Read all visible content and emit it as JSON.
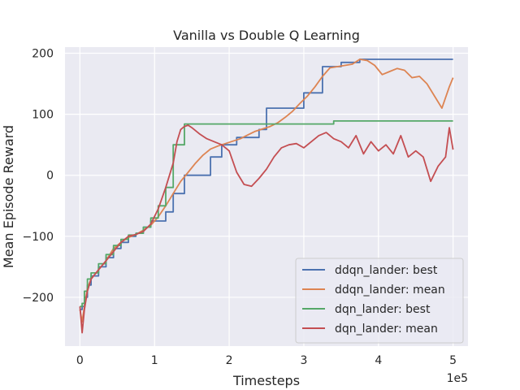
{
  "chart_data": {
    "type": "line",
    "title": "Vanilla vs Double Q Learning",
    "xlabel": "Timesteps",
    "ylabel": "Mean Episode Reward",
    "x_scale_label": "1e5",
    "xlim": [
      -20000,
      520000
    ],
    "ylim": [
      -280,
      210
    ],
    "x_ticks": [
      0,
      100000,
      200000,
      300000,
      400000,
      500000
    ],
    "x_tick_labels": [
      "0",
      "1",
      "2",
      "3",
      "4",
      "5"
    ],
    "y_ticks": [
      -200,
      -100,
      0,
      100,
      200
    ],
    "y_tick_labels": [
      "−200",
      "−100",
      "0",
      "100",
      "200"
    ],
    "grid": true,
    "background": "#eaeaf2",
    "legend_placement": "lower-right",
    "series": [
      {
        "name": "ddqn_lander: best",
        "color": "#4c72b0",
        "step": true,
        "x": [
          0,
          3000,
          6000,
          10000,
          15000,
          25000,
          35000,
          45000,
          55000,
          65000,
          75000,
          85000,
          95000,
          115000,
          125000,
          140000,
          175000,
          190000,
          210000,
          240000,
          250000,
          300000,
          325000,
          350000,
          375000,
          500000
        ],
        "y": [
          -220,
          -215,
          -200,
          -180,
          -165,
          -150,
          -135,
          -120,
          -110,
          -100,
          -95,
          -85,
          -75,
          -60,
          -30,
          0,
          30,
          50,
          62,
          75,
          110,
          135,
          178,
          185,
          190,
          190
        ]
      },
      {
        "name": "ddqn_lander: mean",
        "color": "#dd8452",
        "step": false,
        "x": [
          0,
          3000,
          6000,
          10000,
          15000,
          25000,
          35000,
          45000,
          55000,
          65000,
          75000,
          85000,
          95000,
          105000,
          115000,
          125000,
          135000,
          145000,
          155000,
          165000,
          175000,
          185000,
          195000,
          205000,
          215000,
          225000,
          235000,
          245000,
          255000,
          265000,
          275000,
          285000,
          295000,
          305000,
          315000,
          325000,
          335000,
          345000,
          355000,
          365000,
          375000,
          385000,
          395000,
          405000,
          415000,
          425000,
          435000,
          445000,
          455000,
          465000,
          475000,
          485000,
          495000,
          500000
        ],
        "y": [
          -220,
          -240,
          -215,
          -185,
          -170,
          -155,
          -140,
          -120,
          -110,
          -102,
          -97,
          -90,
          -82,
          -68,
          -50,
          -30,
          -10,
          5,
          20,
          33,
          43,
          48,
          52,
          56,
          60,
          66,
          72,
          76,
          80,
          86,
          95,
          105,
          118,
          130,
          145,
          162,
          176,
          178,
          180,
          182,
          190,
          188,
          180,
          165,
          170,
          175,
          172,
          160,
          162,
          150,
          130,
          110,
          145,
          160
        ]
      },
      {
        "name": "dqn_lander: best",
        "color": "#55a868",
        "step": true,
        "x": [
          0,
          3000,
          6000,
          10000,
          15000,
          25000,
          35000,
          45000,
          55000,
          65000,
          75000,
          85000,
          95000,
          105000,
          115000,
          125000,
          140000,
          340000,
          500000
        ],
        "y": [
          -215,
          -210,
          -190,
          -170,
          -160,
          -145,
          -130,
          -115,
          -105,
          -98,
          -95,
          -85,
          -70,
          -50,
          -20,
          50,
          84,
          89,
          89
        ]
      },
      {
        "name": "dqn_lander: mean",
        "color": "#c44e52",
        "step": false,
        "x": [
          0,
          3000,
          6000,
          10000,
          15000,
          25000,
          35000,
          45000,
          55000,
          65000,
          75000,
          85000,
          95000,
          105000,
          115000,
          125000,
          130000,
          135000,
          140000,
          145000,
          150000,
          160000,
          170000,
          180000,
          190000,
          200000,
          210000,
          220000,
          230000,
          240000,
          250000,
          260000,
          270000,
          280000,
          290000,
          300000,
          310000,
          320000,
          330000,
          340000,
          350000,
          360000,
          370000,
          380000,
          390000,
          400000,
          410000,
          420000,
          430000,
          440000,
          450000,
          460000,
          470000,
          480000,
          490000,
          495000,
          500000
        ],
        "y": [
          -215,
          -258,
          -220,
          -190,
          -170,
          -155,
          -140,
          -125,
          -110,
          -100,
          -97,
          -92,
          -80,
          -55,
          -20,
          20,
          55,
          75,
          80,
          82,
          78,
          68,
          60,
          55,
          50,
          40,
          5,
          -15,
          -18,
          -5,
          10,
          30,
          45,
          50,
          52,
          45,
          55,
          65,
          70,
          60,
          55,
          45,
          65,
          35,
          55,
          40,
          50,
          35,
          65,
          30,
          40,
          30,
          -10,
          15,
          30,
          78,
          42
        ]
      }
    ]
  }
}
